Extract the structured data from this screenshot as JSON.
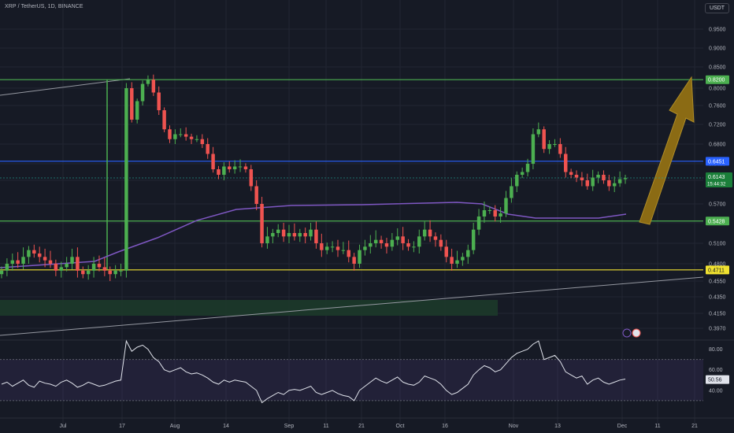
{
  "header": {
    "symbol_line": "XRP / TetherUS, 1D, BINANCE",
    "currency": "USDT"
  },
  "colors": {
    "background": "#161a25",
    "grid": "#222632",
    "up": "#26a69a",
    "up_bright": "#4caf50",
    "down": "#ef5350",
    "support_green": "#4caf50",
    "resistance_blue": "#2962ff",
    "bottom_yellow": "#f0e130",
    "ma_purple": "#7e57c2",
    "arrow_gold": "#8b6b14",
    "rsi_line": "#e0e3eb",
    "rsi_band": "#7e57c2"
  },
  "chart_data": [
    {
      "type": "candlestick",
      "title": "XRP / TetherUS, 1D, BINANCE",
      "price_axis_ticks": [
        "0.9500",
        "0.9000",
        "0.8500",
        "0.8000",
        "0.7600",
        "0.7200",
        "0.6800",
        "0.6400",
        "0.6100",
        "0.5700",
        "0.5400",
        "0.5100",
        "0.4800",
        "0.4550",
        "0.4350",
        "0.4150",
        "0.3970"
      ],
      "time_axis_ticks": [
        "Jul",
        "17",
        "Aug",
        "14",
        "Sep",
        "11",
        "21",
        "Oct",
        "16",
        "Nov",
        "13",
        "Dec",
        "11",
        "21"
      ],
      "horizontal_levels": [
        {
          "name": "resistance",
          "value": 0.82,
          "label": "0.8200",
          "color": "#4caf50"
        },
        {
          "name": "mid",
          "value": 0.6451,
          "label": "0.6451",
          "color": "#2962ff"
        },
        {
          "name": "support",
          "value": 0.5428,
          "label": "0.5428",
          "color": "#4caf50"
        },
        {
          "name": "low",
          "value": 0.4711,
          "label": "0.4711",
          "color": "#f0e130"
        }
      ],
      "last_price": {
        "value": 0.6143,
        "label": "0.6143",
        "countdown": "15:44:32"
      },
      "ohlc_close_series": [
        0.47,
        0.48,
        0.485,
        0.48,
        0.49,
        0.5,
        0.495,
        0.49,
        0.485,
        0.48,
        0.47,
        0.475,
        0.48,
        0.49,
        0.47,
        0.465,
        0.47,
        0.48,
        0.475,
        0.47,
        0.465,
        0.47,
        0.47,
        0.8,
        0.73,
        0.77,
        0.81,
        0.82,
        0.79,
        0.75,
        0.71,
        0.69,
        0.7,
        0.7,
        0.695,
        0.69,
        0.69,
        0.68,
        0.66,
        0.63,
        0.62,
        0.635,
        0.63,
        0.635,
        0.635,
        0.63,
        0.6,
        0.57,
        0.51,
        0.52,
        0.525,
        0.53,
        0.52,
        0.525,
        0.52,
        0.525,
        0.52,
        0.53,
        0.51,
        0.5,
        0.505,
        0.505,
        0.5,
        0.5,
        0.49,
        0.48,
        0.5,
        0.505,
        0.51,
        0.515,
        0.51,
        0.505,
        0.515,
        0.52,
        0.51,
        0.505,
        0.505,
        0.52,
        0.53,
        0.52,
        0.515,
        0.505,
        0.49,
        0.48,
        0.485,
        0.49,
        0.5,
        0.53,
        0.55,
        0.56,
        0.56,
        0.55,
        0.555,
        0.58,
        0.6,
        0.62,
        0.625,
        0.64,
        0.7,
        0.71,
        0.67,
        0.68,
        0.68,
        0.66,
        0.625,
        0.62,
        0.615,
        0.61,
        0.6,
        0.615,
        0.62,
        0.61,
        0.6,
        0.605,
        0.612,
        0.614
      ]
    },
    {
      "type": "line",
      "title": "RSI",
      "y_axis_ticks": [
        "80.00",
        "60.00",
        "40.00"
      ],
      "ylim": [
        20,
        95
      ],
      "band": [
        30,
        70
      ],
      "last_value": "50.56"
    }
  ]
}
